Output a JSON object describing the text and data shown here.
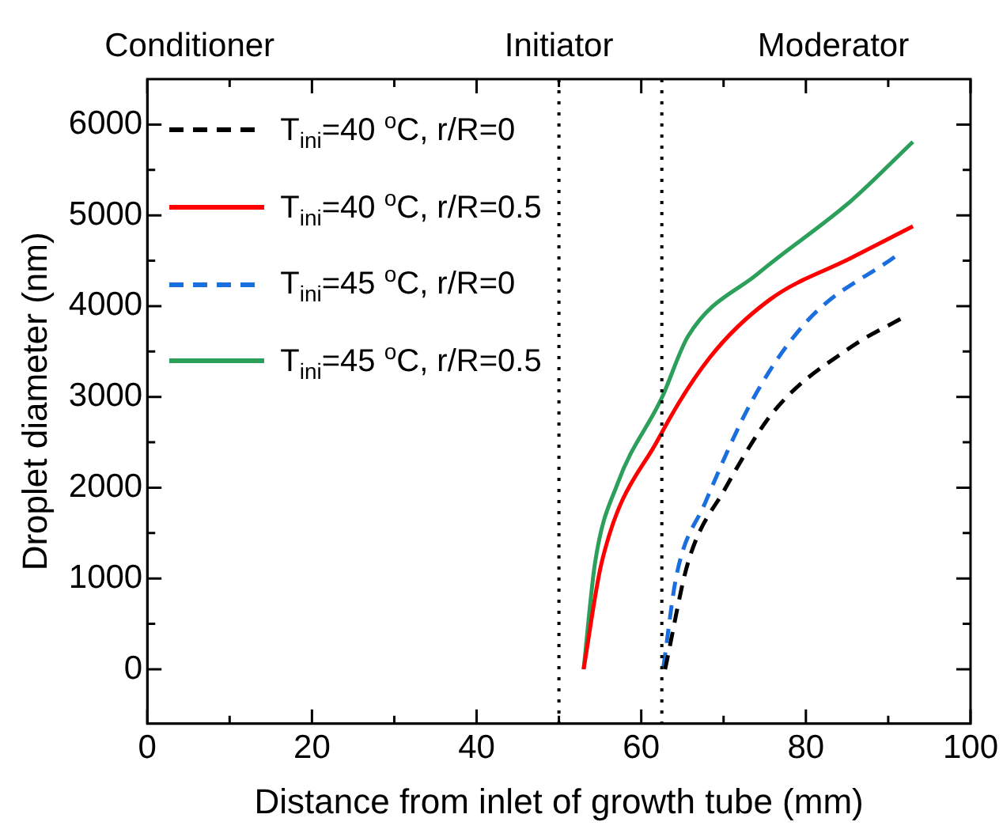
{
  "chart_data": {
    "type": "line",
    "xlabel": "Distance from inlet of growth tube (mm)",
    "ylabel": "Droplet diameter (nm)",
    "xlim": [
      0,
      100
    ],
    "xticks": [
      0,
      {
        "value": 10,
        "label": null
      },
      20,
      {
        "value": 30,
        "label": null
      },
      40,
      {
        "value": 50,
        "label": null
      },
      60,
      {
        "value": 70,
        "label": null
      },
      80,
      {
        "value": 90,
        "label": null
      },
      100
    ],
    "ylim": [
      -600,
      6500
    ],
    "yticks": [
      0,
      {
        "value": 500,
        "label": null
      },
      1000,
      {
        "value": 1500,
        "label": null
      },
      2000,
      {
        "value": 2500,
        "label": null
      },
      3000,
      {
        "value": 3500,
        "label": null
      },
      4000,
      {
        "value": 4500,
        "label": null
      },
      5000,
      {
        "value": 5500,
        "label": null
      },
      6000
    ],
    "grid": false,
    "legend": "top left",
    "marker": "none",
    "series": [
      {
        "name": "T$_{ini}$=40 $^{o}$C, r/R=0",
        "color": "#000000",
        "line_style": "dashed",
        "x": [
          62.9,
          65.7,
          70.2,
          76.2,
          85.5,
          91.5
        ],
        "values": [
          0,
          1180,
          1990,
          2850,
          3550,
          3860
        ]
      },
      {
        "name": "T$_{ini}$=40 $^{o}$C, r/R=0.5",
        "color": "#ff0000",
        "line_style": "solid",
        "x": [
          53,
          55.2,
          62.1,
          68.3,
          75.6,
          85.5,
          93
        ],
        "values": [
          0,
          1180,
          2540,
          3430,
          4070,
          4530,
          4880
        ]
      },
      {
        "name": "T$_{ini}$=45 $^{o}$C, r/R=0",
        "color": "#1a6fdf",
        "line_style": "dashed",
        "x": [
          62.7,
          64.3,
          67.7,
          73.6,
          80.2,
          90.9
        ],
        "values": [
          30,
          1040,
          1820,
          2980,
          3840,
          4550
        ]
      },
      {
        "name": "T$_{ini}$=45 $^{o}$C, r/R=0.5",
        "color": "#2ca05a",
        "line_style": "solid",
        "x": [
          53,
          54.4,
          57.1,
          62.5,
          65.7,
          74.2,
          85.5,
          93
        ],
        "values": [
          0,
          1180,
          2040,
          2990,
          3670,
          4360,
          5160,
          5810
        ]
      }
    ],
    "ref_lines": [
      {
        "axis": "x",
        "value": 50,
        "line_style": "dotted",
        "color": "#000000"
      },
      {
        "axis": "x",
        "value": 62.5,
        "line_style": "dotted",
        "color": "#000000"
      }
    ],
    "annotations": [
      "Conditioner",
      "Initiator",
      "Moderator"
    ]
  }
}
